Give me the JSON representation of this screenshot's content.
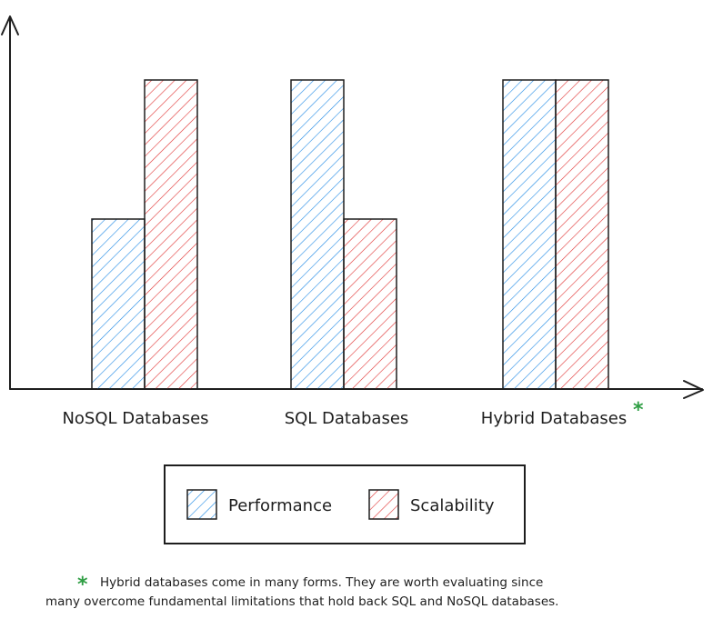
{
  "chart_data": {
    "type": "bar",
    "categories": [
      "NoSQL Databases",
      "SQL Databases",
      "Hybrid Databases"
    ],
    "series": [
      {
        "name": "Performance",
        "values": [
          55,
          100,
          100
        ]
      },
      {
        "name": "Scalability",
        "values": [
          100,
          55,
          100
        ]
      }
    ],
    "ylim": [
      0,
      100
    ],
    "title": "",
    "xlabel": "",
    "ylabel": "",
    "grid": false,
    "legend_position": "bottom",
    "annotation_marker": "*",
    "marked_category": "Hybrid Databases"
  },
  "footnote": {
    "marker": "*",
    "line1": "Hybrid databases come in many forms. They are worth evaluating since",
    "line2": "many overcome fundamental limitations that hold back SQL and NoSQL databases."
  },
  "colors": {
    "performance": "#1e88e5",
    "scalability": "#e03131",
    "marker": "#2f9e44",
    "ink": "#1e1e1e"
  },
  "icons": {
    "axis_arrow": "arrow-icon",
    "marker": "asterisk-icon"
  }
}
